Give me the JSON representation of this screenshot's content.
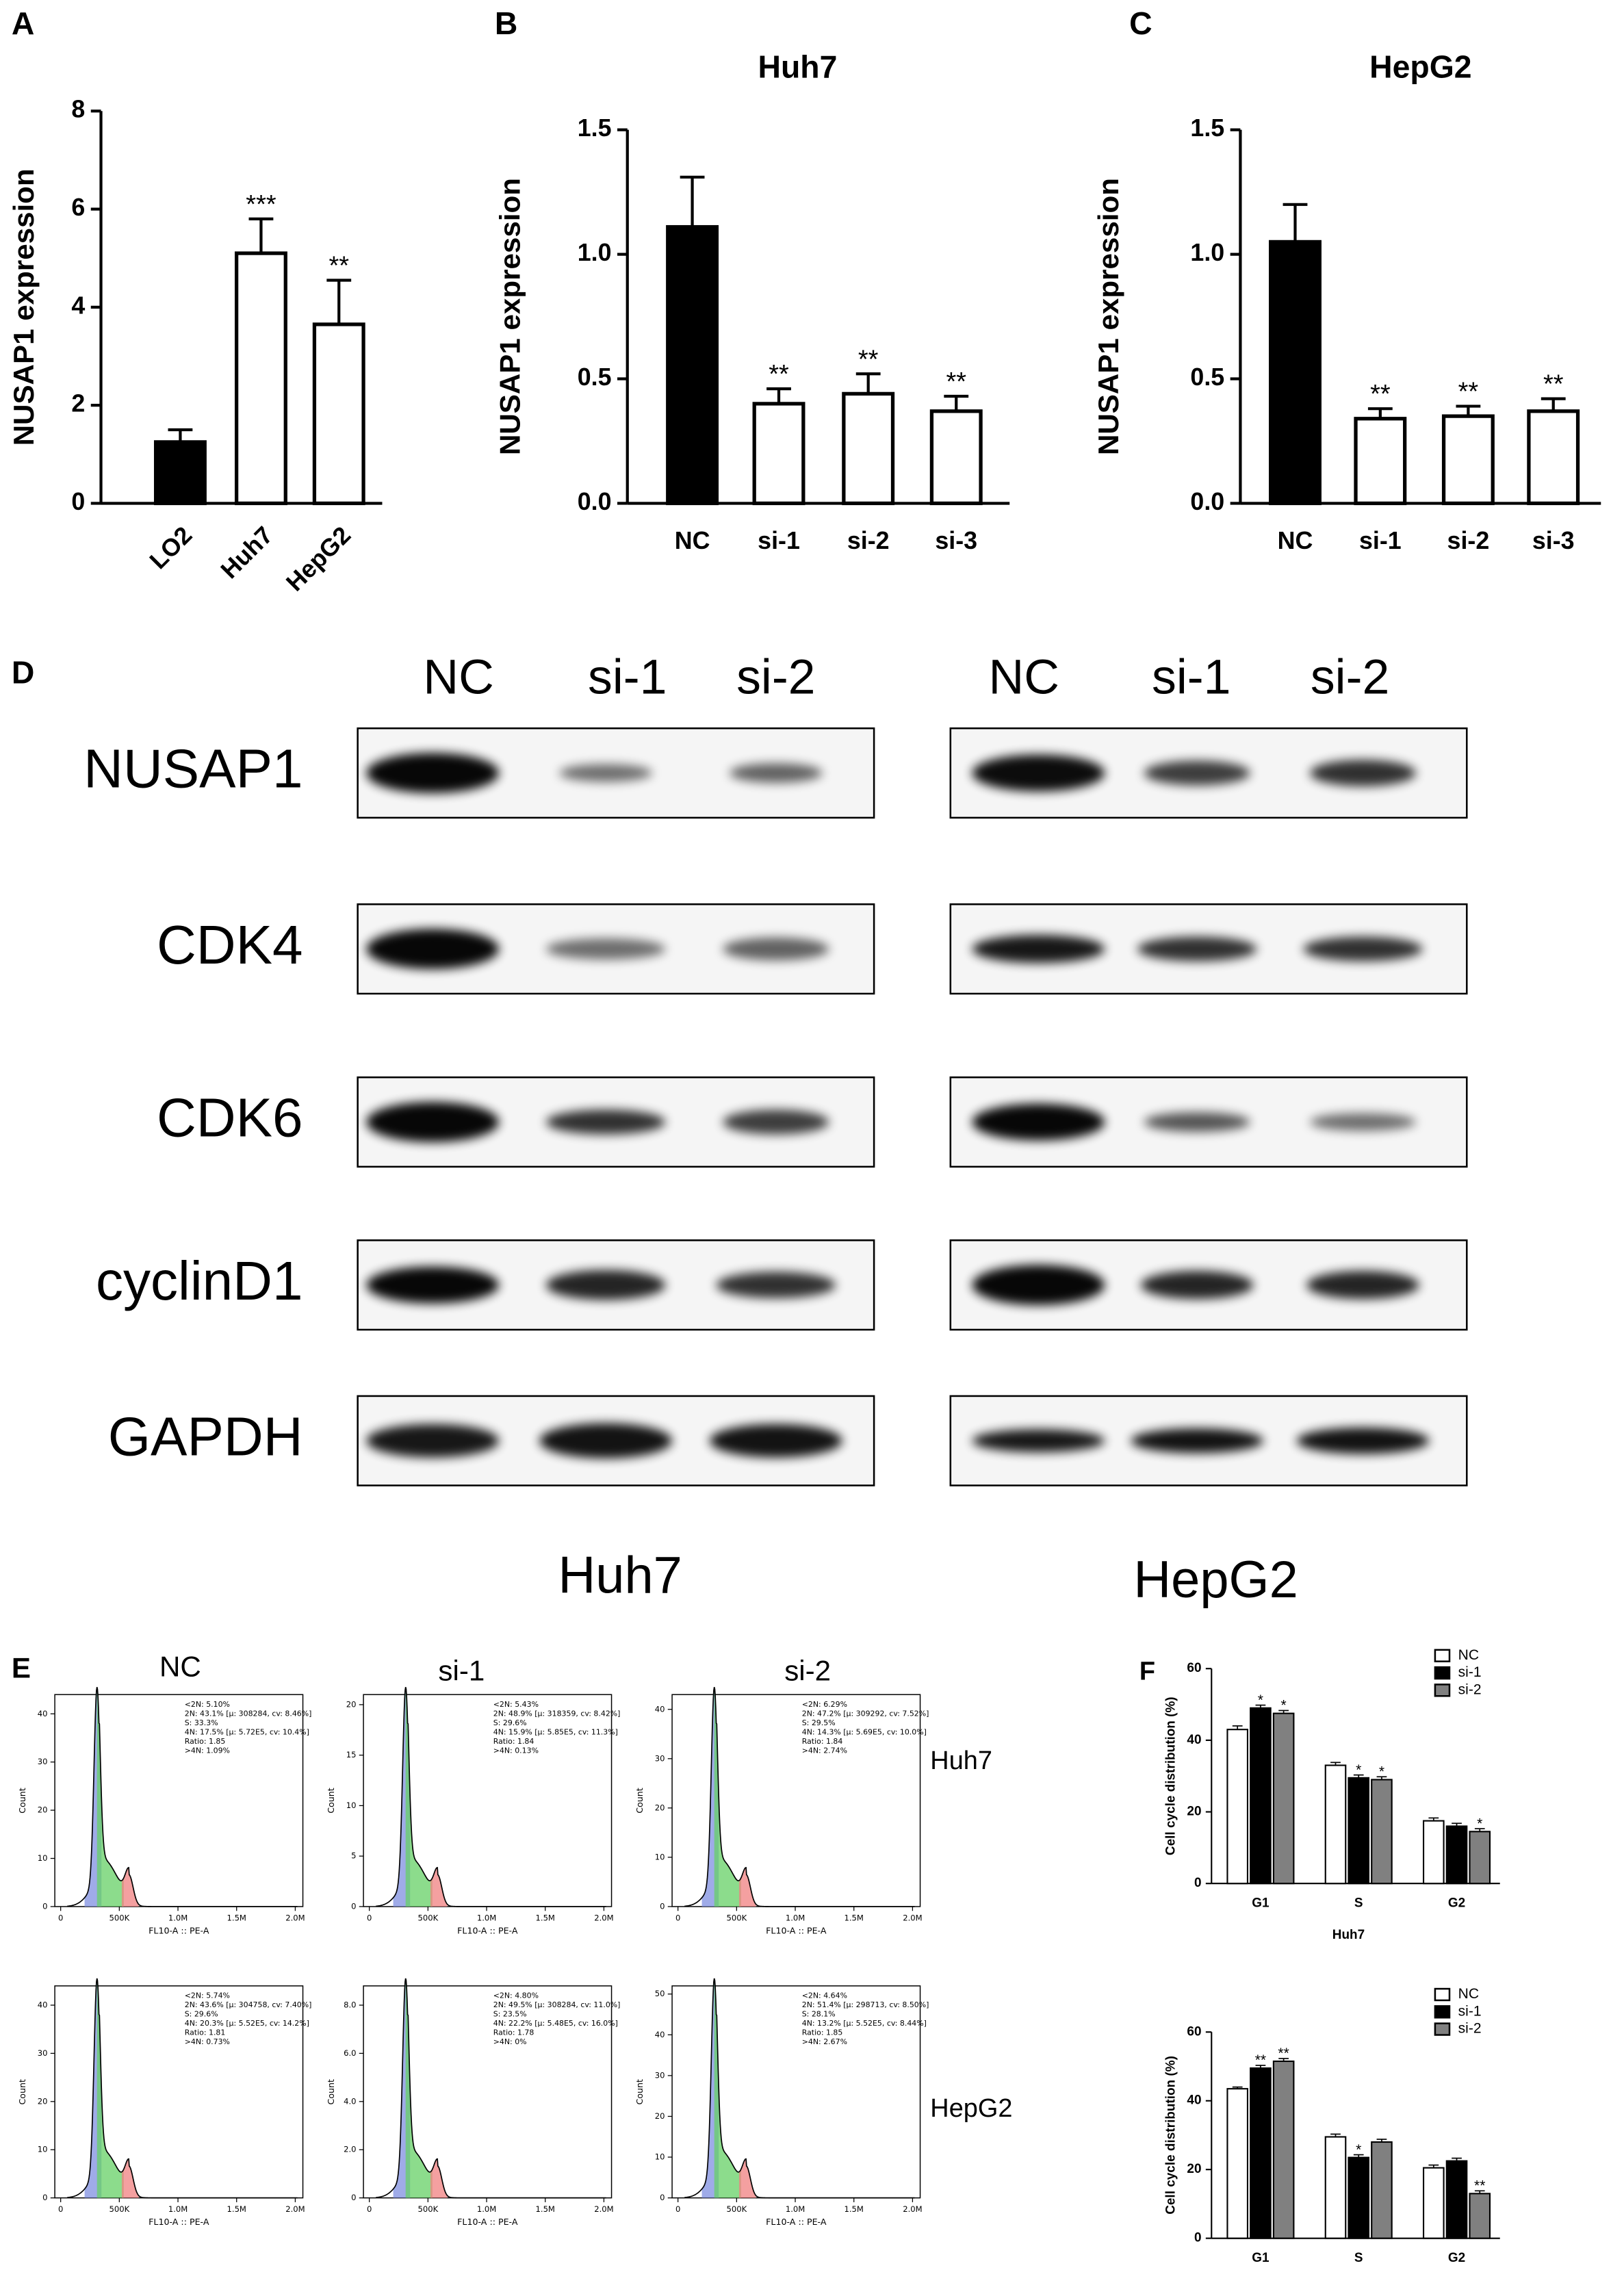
{
  "chart_data": [
    {
      "type": "bar",
      "panel": "A",
      "ylabel": "NUSAP1 expression",
      "categories": [
        "LO2",
        "Huh7",
        "HepG2"
      ],
      "values": [
        1.25,
        5.1,
        3.65
      ],
      "errors": [
        0.25,
        0.7,
        0.9
      ],
      "annotations": [
        null,
        "***",
        "**"
      ],
      "colors": [
        "#000000",
        "#ffffff",
        "#ffffff"
      ],
      "ylim": [
        0,
        8
      ],
      "yticks": [
        0,
        2,
        4,
        6,
        8
      ]
    },
    {
      "type": "bar",
      "panel": "B",
      "title": "Huh7",
      "ylabel": "NUSAP1 expression",
      "categories": [
        "NC",
        "si-1",
        "si-2",
        "si-3"
      ],
      "values": [
        1.11,
        0.4,
        0.44,
        0.37
      ],
      "errors": [
        0.2,
        0.06,
        0.08,
        0.06
      ],
      "annotations": [
        null,
        "**",
        "**",
        "**"
      ],
      "colors": [
        "#000000",
        "#ffffff",
        "#ffffff",
        "#ffffff"
      ],
      "ylim": [
        0,
        1.5
      ],
      "yticks": [
        {
          "value": 0,
          "label": "0.0"
        },
        {
          "value": 0.5,
          "label": "0.5"
        },
        {
          "value": 1,
          "label": "1.0"
        },
        {
          "value": 1.5,
          "label": "1.5"
        }
      ]
    },
    {
      "type": "bar",
      "panel": "C",
      "title": "HepG2",
      "ylabel": "NUSAP1 expression",
      "categories": [
        "NC",
        "si-1",
        "si-2",
        "si-3"
      ],
      "values": [
        1.05,
        0.34,
        0.35,
        0.37
      ],
      "errors": [
        0.15,
        0.04,
        0.04,
        0.05
      ],
      "annotations": [
        null,
        "**",
        "**",
        "**"
      ],
      "colors": [
        "#000000",
        "#ffffff",
        "#ffffff",
        "#ffffff"
      ],
      "ylim": [
        0,
        1.5
      ],
      "yticks": [
        {
          "value": 0,
          "label": "0.0"
        },
        {
          "value": 0.5,
          "label": "0.5"
        },
        {
          "value": 1,
          "label": "1.0"
        },
        {
          "value": 1.5,
          "label": "1.5"
        }
      ]
    },
    {
      "type": "grouped-bar",
      "panel": "F",
      "xlabel": "Huh7",
      "ylabel": "Cell cycle distribution (%)",
      "categories": [
        "G1",
        "S",
        "G2"
      ],
      "series": [
        {
          "name": "NC",
          "color": "#ffffff",
          "values": [
            43,
            33,
            17.5
          ],
          "errors": [
            1,
            0.8,
            0.8
          ],
          "annotations": [
            null,
            null,
            null
          ]
        },
        {
          "name": "si-1",
          "color": "#000000",
          "values": [
            49,
            29.5,
            16
          ],
          "errors": [
            0.8,
            0.8,
            0.8
          ],
          "annotations": [
            "*",
            "*",
            null
          ]
        },
        {
          "name": "si-2",
          "color": "#808080",
          "values": [
            47.5,
            29,
            14.5
          ],
          "errors": [
            0.8,
            0.8,
            0.8
          ],
          "annotations": [
            "*",
            "*",
            "*"
          ]
        }
      ],
      "ylim": [
        0,
        60
      ],
      "yticks": [
        0,
        20,
        40,
        60
      ]
    },
    {
      "type": "grouped-bar",
      "xlabel": "HepG2",
      "ylabel": "Cell cycle distribution (%)",
      "categories": [
        "G1",
        "S",
        "G2"
      ],
      "series": [
        {
          "name": "NC",
          "color": "#ffffff",
          "values": [
            43.5,
            29.5,
            20.5
          ],
          "errors": [
            0.5,
            0.8,
            0.8
          ],
          "annotations": [
            null,
            null,
            null
          ]
        },
        {
          "name": "si-1",
          "color": "#000000",
          "values": [
            49.5,
            23.5,
            22.5
          ],
          "errors": [
            0.8,
            0.8,
            0.8
          ],
          "annotations": [
            "**",
            "*",
            null
          ]
        },
        {
          "name": "si-2",
          "color": "#808080",
          "values": [
            51.5,
            28,
            13
          ],
          "errors": [
            0.8,
            0.8,
            0.8
          ],
          "annotations": [
            "**",
            null,
            "**"
          ]
        }
      ],
      "ylim": [
        0,
        60
      ],
      "yticks": [
        0,
        20,
        40,
        60
      ]
    }
  ],
  "western_blot": {
    "panel": "D",
    "cell_lines": [
      "Huh7",
      "HepG2"
    ],
    "lanes": [
      [
        "NC",
        "si-1",
        "si-2"
      ],
      [
        "NC",
        "si-1",
        "si-2"
      ]
    ],
    "proteins": [
      "NUSAP1",
      "CDK4",
      "CDK6",
      "cyclinD1",
      "GAPDH"
    ]
  },
  "flow_cytometry": {
    "panel": "E",
    "samples": [
      "NC",
      "si-1",
      "si-2"
    ],
    "cell_lines": [
      "Huh7",
      "HepG2"
    ],
    "xlabel": "FL10-A :: PE-A",
    "ylabel": "Count",
    "xlim": [
      -50000,
      2065000
    ],
    "xticks": [
      0,
      {
        "value": 500000,
        "label": "500K"
      },
      {
        "value": 1000000,
        "label": "1.0M"
      },
      {
        "value": 1500000,
        "label": "1.5M"
      },
      {
        "value": 2000000,
        "label": "2.0M"
      }
    ],
    "panels": [
      [
        {
          "ylim": [
            0,
            44
          ],
          "yticks": [
            0,
            10,
            20,
            30,
            40
          ],
          "stats": [
            "<2N: 5.10%",
            "2N: 43.1%  [μ: 308284, cv: 8.46%]",
            "S: 33.3%",
            "4N: 17.5%  [μ: 5.72E5, cv: 10.4%]",
            "Ratio: 1.85",
            ">4N: 1.09%"
          ]
        },
        {
          "ylim": [
            0,
            21
          ],
          "yticks": [
            0,
            5,
            10,
            15,
            20
          ],
          "stats": [
            "<2N: 5.43%",
            "2N: 48.9%  [μ: 318359, cv: 8.42%]",
            "S: 29.6%",
            "4N: 15.9%  [μ: 5.85E5, cv: 11.3%]",
            "Ratio: 1.84",
            ">4N: 0.13%"
          ]
        },
        {
          "ylim": [
            0,
            43
          ],
          "yticks": [
            0,
            10,
            20,
            30,
            40
          ],
          "stats": [
            "<2N: 6.29%",
            "2N: 47.2%  [μ: 309292, cv: 7.52%]",
            "S: 29.5%",
            "4N: 14.3%  [μ: 5.69E5, cv: 10.0%]",
            "Ratio: 1.84",
            ">4N: 2.74%"
          ]
        }
      ],
      [
        {
          "ylim": [
            0,
            44
          ],
          "yticks": [
            0,
            10,
            20,
            30,
            40
          ],
          "stats": [
            "<2N: 5.74%",
            "2N: 43.6%  [μ: 304758, cv: 7.40%]",
            "S: 29.6%",
            "4N: 20.3%  [μ: 5.52E5, cv: 14.2%]",
            "Ratio: 1.81",
            ">4N: 0.73%"
          ]
        },
        {
          "ylim": [
            0,
            8.8
          ],
          "yticks": [
            0,
            {
              "value": 2,
              "label": "2.0"
            },
            {
              "value": 4,
              "label": "4.0"
            },
            {
              "value": 6,
              "label": "6.0"
            },
            {
              "value": 8,
              "label": "8.0"
            }
          ],
          "stats": [
            "<2N: 4.80%",
            "2N: 49.5%  [μ: 308284, cv: 11.0%]",
            "S: 23.5%",
            "4N: 22.2%  [μ: 5.48E5, cv: 16.0%]",
            "Ratio: 1.78",
            ">4N: 0%"
          ]
        },
        {
          "ylim": [
            0,
            52
          ],
          "yticks": [
            0,
            10,
            20,
            30,
            40,
            50
          ],
          "stats": [
            "<2N: 4.64%",
            "2N: 51.4%  [μ: 298713, cv: 8.50%]",
            "S: 28.1%",
            "4N: 13.2%  [μ: 5.52E5, cv: 8.44%]",
            "Ratio: 1.85",
            ">4N: 2.67%"
          ]
        }
      ]
    ]
  }
}
